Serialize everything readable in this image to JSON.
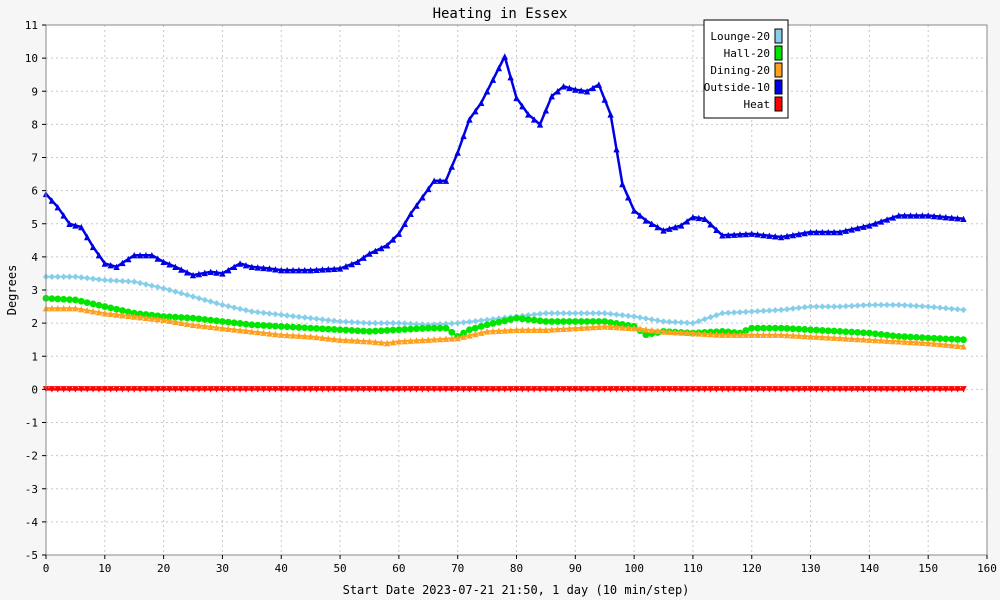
{
  "chart_data": {
    "type": "line",
    "title": "Heating in Essex",
    "xlabel": "Start Date 2023-07-21 21:50, 1 day (10 min/step)",
    "ylabel": "Degrees",
    "xlim": [
      0,
      160
    ],
    "ylim": [
      -5,
      11
    ],
    "x_ticks": [
      0,
      10,
      20,
      30,
      40,
      50,
      60,
      70,
      80,
      90,
      100,
      110,
      120,
      130,
      140,
      150,
      160
    ],
    "y_ticks": [
      -5,
      -4,
      -3,
      -2,
      -1,
      0,
      1,
      2,
      3,
      4,
      5,
      6,
      7,
      8,
      9,
      10,
      11
    ],
    "grid": true,
    "legend_position": "top-right",
    "colors": {
      "background": "#f6f6f6",
      "plot_background": "#ffffff",
      "grid": "#c8c8c8"
    },
    "series": [
      {
        "name": "Lounge-20",
        "color": "#87ceeb",
        "marker": "diamond",
        "x": [
          0,
          5,
          10,
          15,
          20,
          25,
          30,
          35,
          40,
          45,
          50,
          55,
          60,
          65,
          70,
          75,
          80,
          85,
          90,
          95,
          100,
          105,
          110,
          115,
          120,
          125,
          130,
          135,
          140,
          145,
          150,
          156
        ],
        "values": [
          3.4,
          3.4,
          3.3,
          3.25,
          3.05,
          2.8,
          2.55,
          2.35,
          2.25,
          2.15,
          2.05,
          2.0,
          2.0,
          1.95,
          2.0,
          2.1,
          2.2,
          2.3,
          2.3,
          2.3,
          2.2,
          2.05,
          2.0,
          2.3,
          2.35,
          2.4,
          2.5,
          2.5,
          2.55,
          2.55,
          2.5,
          2.4
        ]
      },
      {
        "name": "Hall-20",
        "color": "#00e600",
        "marker": "circle",
        "x": [
          0,
          5,
          10,
          15,
          20,
          25,
          30,
          35,
          40,
          45,
          50,
          55,
          60,
          65,
          68,
          70,
          72,
          75,
          80,
          85,
          90,
          95,
          100,
          102,
          105,
          110,
          115,
          118,
          120,
          125,
          130,
          135,
          140,
          145,
          150,
          156
        ],
        "values": [
          2.75,
          2.7,
          2.5,
          2.3,
          2.2,
          2.15,
          2.05,
          1.95,
          1.9,
          1.85,
          1.8,
          1.75,
          1.8,
          1.85,
          1.85,
          1.6,
          1.8,
          1.95,
          2.15,
          2.05,
          2.05,
          2.05,
          1.9,
          1.65,
          1.75,
          1.7,
          1.75,
          1.7,
          1.85,
          1.85,
          1.8,
          1.75,
          1.7,
          1.6,
          1.55,
          1.5
        ]
      },
      {
        "name": "Dining-20",
        "color": "#ffa01e",
        "marker": "triangle-up",
        "x": [
          0,
          5,
          10,
          15,
          20,
          25,
          30,
          35,
          40,
          45,
          50,
          55,
          58,
          60,
          65,
          70,
          75,
          80,
          85,
          90,
          95,
          100,
          105,
          110,
          115,
          120,
          125,
          130,
          135,
          140,
          145,
          150,
          156
        ],
        "values": [
          2.45,
          2.45,
          2.3,
          2.2,
          2.1,
          1.95,
          1.85,
          1.75,
          1.65,
          1.6,
          1.5,
          1.45,
          1.4,
          1.45,
          1.5,
          1.55,
          1.75,
          1.8,
          1.8,
          1.85,
          1.9,
          1.85,
          1.75,
          1.7,
          1.65,
          1.65,
          1.65,
          1.6,
          1.55,
          1.5,
          1.45,
          1.4,
          1.3
        ]
      },
      {
        "name": "Outside-10",
        "color": "#0000e6",
        "marker": "triangle-up",
        "x": [
          0,
          2,
          4,
          6,
          8,
          10,
          12,
          15,
          18,
          20,
          22,
          25,
          28,
          30,
          33,
          35,
          38,
          40,
          45,
          50,
          53,
          55,
          58,
          60,
          62,
          64,
          66,
          68,
          70,
          72,
          74,
          76,
          78,
          80,
          82,
          84,
          86,
          88,
          90,
          92,
          94,
          96,
          98,
          100,
          102,
          105,
          108,
          110,
          112,
          115,
          120,
          125,
          130,
          135,
          140,
          145,
          150,
          156
        ],
        "values": [
          5.9,
          5.5,
          5.0,
          4.9,
          4.3,
          3.8,
          3.7,
          4.05,
          4.05,
          3.85,
          3.7,
          3.45,
          3.55,
          3.5,
          3.8,
          3.7,
          3.65,
          3.6,
          3.6,
          3.65,
          3.85,
          4.1,
          4.35,
          4.7,
          5.3,
          5.8,
          6.3,
          6.3,
          7.15,
          8.15,
          8.65,
          9.35,
          10.05,
          8.8,
          8.3,
          8.0,
          8.85,
          9.15,
          9.05,
          9.0,
          9.2,
          8.3,
          6.2,
          5.4,
          5.1,
          4.8,
          4.95,
          5.2,
          5.15,
          4.65,
          4.7,
          4.6,
          4.75,
          4.75,
          4.95,
          5.25,
          5.25,
          5.15
        ]
      },
      {
        "name": "Heat",
        "color": "#ff0000",
        "marker": "triangle-down",
        "x": [
          0,
          156
        ],
        "values": [
          0,
          0
        ]
      }
    ]
  }
}
